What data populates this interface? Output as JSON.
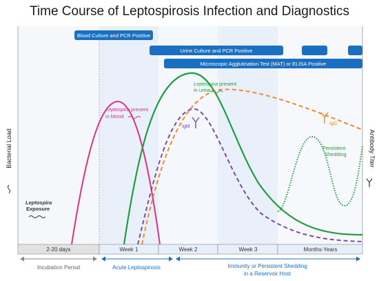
{
  "title": "Time Course of Leptospirosis Infection and Diagnostics",
  "y_axis_left": "Bacterial Load",
  "y_axis_right": "Antibody Titer",
  "timeline": {
    "segments": [
      "2-20 days",
      "Week 1",
      "Week 2",
      "Week 3",
      "Months-Years"
    ]
  },
  "phases": {
    "incubation": "Incubation Period",
    "acute": "Acute Leptospirosis",
    "immunity_line1": "Immunity or Persistent Shedding",
    "immunity_line2": "in a Reservoir Host"
  },
  "tests": {
    "blood": "Blood Culture and PCR Positive",
    "urine": "Urine Culture and PCR Positive",
    "mat": "Microscopic Agglutination Test (MAT) or ELISA Positive"
  },
  "annotations": {
    "blood_italic": "Leptospira",
    "blood_rest": " present",
    "blood_line2": "in blood",
    "urine_italic": "Leptospira",
    "urine_rest": " present",
    "urine_line2": "in urine",
    "exposure_line1": "Leptospira",
    "exposure_line2": "Exposure",
    "persistent_line1": "Persistent",
    "persistent_line2": "Shedding",
    "igm": "IgM",
    "igg": "IgG"
  },
  "colors": {
    "blood_curve": "#d63384",
    "urine_curve": "#1e9e3e",
    "igm_curve": "#7b4aa3",
    "igg_curve": "#ee8a2a",
    "test_bar": "#1b6fc1",
    "phase_text": "#1b6fc1",
    "incubation_text": "#666666"
  }
}
